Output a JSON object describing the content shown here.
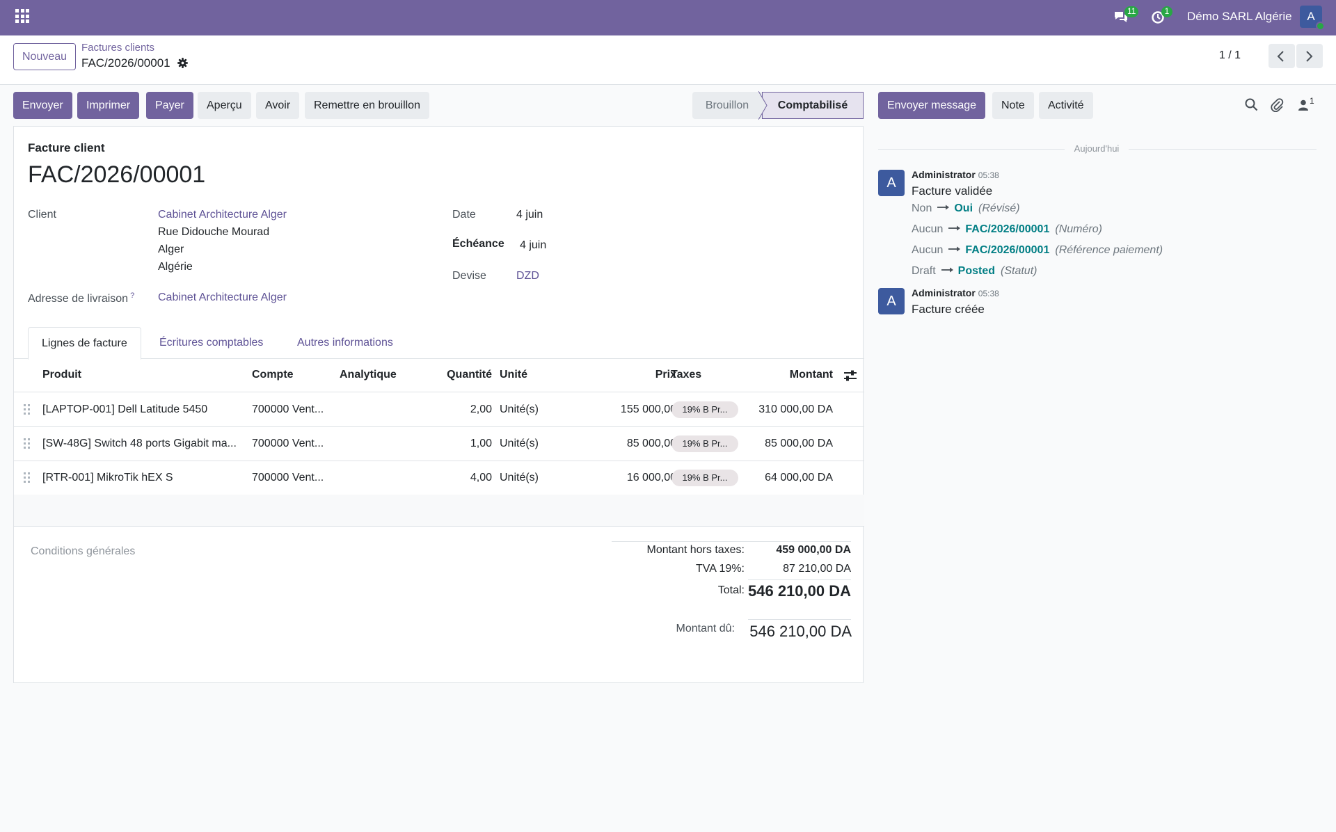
{
  "navbar": {
    "chat_count": "11",
    "activity_count": "1",
    "company": "Démo SARL Algérie",
    "avatar_letter": "A"
  },
  "control": {
    "new_label": "Nouveau",
    "breadcrumb": "Factures clients",
    "record": "FAC/2026/00001",
    "pager": "1 / 1"
  },
  "actions": {
    "send": "Envoyer",
    "print": "Imprimer",
    "pay": "Payer",
    "preview": "Aperçu",
    "credit": "Avoir",
    "reset": "Remettre en brouillon"
  },
  "statusbar": {
    "draft": "Brouillon",
    "posted": "Comptabilisé"
  },
  "invoice": {
    "type_label": "Facture client",
    "name": "FAC/2026/00001",
    "client_label": "Client",
    "client_name": "Cabinet Architecture Alger",
    "client_street": "Rue Didouche Mourad",
    "client_city": "Alger",
    "client_country": "Algérie",
    "delivery_label": "Adresse de livraison",
    "delivery_tooltip": "?",
    "delivery_value": "Cabinet Architecture Alger",
    "date_label": "Date",
    "date_value": "4 juin",
    "due_label": "Échéance",
    "due_value": "4 juin",
    "currency_label": "Devise",
    "currency_value": "DZD"
  },
  "tabs": {
    "lines": "Lignes de facture",
    "entries": "Écritures comptables",
    "other": "Autres informations"
  },
  "table": {
    "headers": {
      "product": "Produit",
      "account": "Compte",
      "analytic": "Analytique",
      "quantity": "Quantité",
      "unit": "Unité",
      "price": "Prix",
      "taxes": "Taxes",
      "amount": "Montant"
    },
    "rows": [
      {
        "product": "[LAPTOP-001] Dell Latitude 5450",
        "account": "700000 Vent...",
        "quantity": "2,00",
        "unit": "Unité(s)",
        "price": "155 000,00",
        "tax": "19% B Pr...",
        "amount": "310 000,00 DA"
      },
      {
        "product": "[SW-48G] Switch 48 ports Gigabit ma...",
        "account": "700000 Vent...",
        "quantity": "1,00",
        "unit": "Unité(s)",
        "price": "85 000,00",
        "tax": "19% B Pr...",
        "amount": "85 000,00 DA"
      },
      {
        "product": "[RTR-001] MikroTik hEX S",
        "account": "700000 Vent...",
        "quantity": "4,00",
        "unit": "Unité(s)",
        "price": "16 000,00",
        "tax": "19% B Pr...",
        "amount": "64 000,00 DA"
      }
    ]
  },
  "totals": {
    "terms_placeholder": "Conditions générales",
    "untaxed_label": "Montant hors taxes:",
    "untaxed_value": "459 000,00 DA",
    "tva_label": "TVA 19%:",
    "tva_value": "87 210,00 DA",
    "total_label": "Total:",
    "total_value": "546 210,00 DA",
    "due_label": "Montant dû:",
    "due_value": "546 210,00 DA"
  },
  "chatter": {
    "send_message": "Envoyer message",
    "note": "Note",
    "activity": "Activité",
    "followers_count": "1",
    "today": "Aujourd'hui",
    "messages": [
      {
        "avatar": "A",
        "author": "Administrator",
        "time": "05:38",
        "body": "Facture validée",
        "tracking": [
          {
            "old": "Non",
            "new": "Oui",
            "field": "(Révisé)"
          },
          {
            "old": "Aucun",
            "new": "FAC/2026/00001",
            "field": "(Numéro)"
          },
          {
            "old": "Aucun",
            "new": "FAC/2026/00001",
            "field": "(Référence paiement)"
          },
          {
            "old": "Draft",
            "new": "Posted",
            "field": "(Statut)"
          }
        ]
      },
      {
        "avatar": "A",
        "author": "Administrator",
        "time": "05:38",
        "body": "Facture créée"
      }
    ]
  }
}
